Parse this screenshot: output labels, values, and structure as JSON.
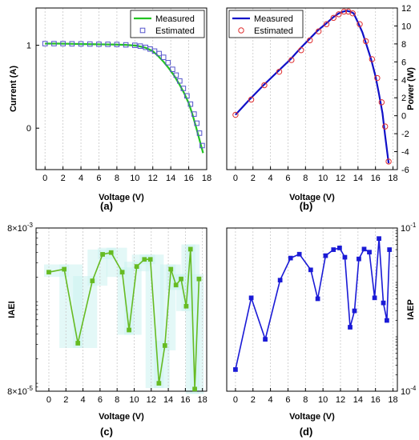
{
  "chart_data": [
    {
      "id": "a",
      "type": "line",
      "panel_label": "(a)",
      "xlabel": "Voltage (V)",
      "ylabel": "Current (A)",
      "xlim": [
        -1,
        18
      ],
      "ylim": [
        -0.5,
        1.45
      ],
      "xticks": [
        "0",
        "2",
        "4",
        "6",
        "8",
        "10",
        "12",
        "14",
        "16",
        "18"
      ],
      "yticks": [
        "0",
        "1"
      ],
      "grid": "vertical dashed",
      "legend": {
        "position": "top-right",
        "entries": [
          "Measured",
          "Estimated"
        ]
      },
      "series": [
        {
          "name": "Measured",
          "style": "line",
          "color": "#22c322",
          "x": [
            0,
            1.5,
            3,
            4.5,
            6,
            7.5,
            9,
            10.2,
            11.2,
            12,
            12.6,
            13.2,
            13.8,
            14.4,
            15,
            15.5,
            16,
            16.4,
            16.8,
            17.2,
            17.6
          ],
          "y": [
            1.02,
            1.02,
            1.018,
            1.015,
            1.012,
            1.01,
            1.005,
            0.995,
            0.97,
            0.93,
            0.87,
            0.8,
            0.72,
            0.63,
            0.52,
            0.42,
            0.3,
            0.17,
            0.02,
            -0.14,
            -0.3
          ]
        },
        {
          "name": "Estimated",
          "style": "square",
          "color": "#5555cc",
          "x": [
            0,
            1,
            2,
            3,
            4,
            5,
            6,
            7,
            8,
            9,
            10,
            10.6,
            11.2,
            11.7,
            12.2,
            12.7,
            13.2,
            13.7,
            14.2,
            14.6,
            15,
            15.4,
            15.8,
            16.2,
            16.6,
            16.9,
            17.2,
            17.5
          ],
          "y": [
            1.02,
            1.02,
            1.02,
            1.018,
            1.017,
            1.015,
            1.013,
            1.012,
            1.01,
            1.005,
            1,
            0.99,
            0.975,
            0.955,
            0.93,
            0.9,
            0.855,
            0.79,
            0.71,
            0.64,
            0.57,
            0.48,
            0.39,
            0.29,
            0.17,
            0.06,
            -0.06,
            -0.21
          ]
        }
      ]
    },
    {
      "id": "b",
      "type": "line",
      "panel_label": "(b)",
      "xlabel": "Voltage (V)",
      "ylabel": "Power (W)",
      "xlim": [
        -1,
        18.5
      ],
      "ylim": [
        -6,
        12
      ],
      "xticks": [
        "0",
        "2",
        "4",
        "6",
        "8",
        "10",
        "12",
        "14",
        "16",
        "18"
      ],
      "yticks": [
        "-6",
        "-4",
        "-2",
        "0",
        "2",
        "4",
        "6",
        "8",
        "10",
        "12"
      ],
      "y_axis_side": "right",
      "grid": "vertical dashed",
      "legend": {
        "position": "top-left",
        "entries": [
          "Measured",
          "Estimated"
        ]
      },
      "series": [
        {
          "name": "Measured",
          "style": "line",
          "color": "#1010c8",
          "x": [
            0,
            1.6,
            3.2,
            4.8,
            6.3,
            7.4,
            8.4,
            9.4,
            10.4,
            11.2,
            11.8,
            12.3,
            12.7,
            13.1,
            13.5,
            14,
            14.5,
            15,
            15.5,
            16,
            16.4,
            16.8,
            17.1,
            17.5
          ],
          "y": [
            0.1,
            1.8,
            3.4,
            4.9,
            6.3,
            7.5,
            8.5,
            9.5,
            10.3,
            11,
            11.4,
            11.6,
            11.7,
            11.6,
            11.4,
            10.4,
            9.3,
            7.8,
            6.3,
            4.4,
            2.4,
            0.3,
            -2.2,
            -5.3
          ]
        },
        {
          "name": "Estimated",
          "style": "circle",
          "color": "#e03030",
          "x": [
            0,
            1.8,
            3.3,
            5,
            6.4,
            7.5,
            8.5,
            9.5,
            10.4,
            11.2,
            11.8,
            12.4,
            12.9,
            13.4,
            14.2,
            14.9,
            15.6,
            16.2,
            16.7,
            17.1,
            17.5
          ],
          "y": [
            0.1,
            1.8,
            3.4,
            4.9,
            6.2,
            7.3,
            8.4,
            9.4,
            10.2,
            10.9,
            11.3,
            11.6,
            11.6,
            11.4,
            10.2,
            8.3,
            6.3,
            4.2,
            1.5,
            -1.2,
            -5.1
          ]
        }
      ]
    },
    {
      "id": "c",
      "type": "line",
      "panel_label": "(c)",
      "xlabel": "Voltage (V)",
      "ylabel": "IAEI",
      "xlim": [
        -1.5,
        18.5
      ],
      "y_scale": "log",
      "ylim": [
        8e-05,
        0.008
      ],
      "yticks_labels": [
        "8×10",
        "8×10"
      ],
      "yticks_exponents": [
        "-3",
        "-5"
      ],
      "xticks": [
        "0",
        "2",
        "4",
        "6",
        "8",
        "10",
        "12",
        "14",
        "16",
        "18"
      ],
      "grid": "vertical dashed",
      "band_color": "#ccf3f0",
      "series": [
        {
          "name": "",
          "style": "line+square",
          "color": "#66bb22",
          "x": [
            0,
            1.8,
            3.4,
            5.1,
            6.3,
            7.3,
            8.6,
            9.4,
            10.3,
            11.2,
            11.9,
            12.9,
            13.6,
            14.3,
            14.9,
            15.5,
            16.1,
            16.6,
            17.1,
            17.6
          ],
          "y": [
            0.0023,
            0.0025,
            0.00031,
            0.0018,
            0.0038,
            0.004,
            0.0023,
            0.00045,
            0.0027,
            0.0033,
            0.0033,
            0.0001,
            0.00029,
            0.0025,
            0.0016,
            0.0019,
            0.00088,
            0.0044,
            8.5e-05,
            0.0019
          ]
        }
      ]
    },
    {
      "id": "d",
      "type": "line",
      "panel_label": "(d)",
      "xlabel": "Voltage (V)",
      "ylabel": "IAEP",
      "xlim": [
        -1,
        18.5
      ],
      "y_scale": "log",
      "ylim": [
        0.0001,
        0.1
      ],
      "yticks_labels": [
        "10",
        "10"
      ],
      "yticks_exponents": [
        "-1",
        "-4"
      ],
      "xticks": [
        "0",
        "2",
        "4",
        "6",
        "8",
        "10",
        "12",
        "14",
        "16",
        "18"
      ],
      "grid": "vertical dashed",
      "series": [
        {
          "name": "",
          "style": "line+square",
          "color": "#1a1ad6",
          "x": [
            0,
            1.8,
            3.4,
            5.1,
            6.3,
            7.3,
            8.6,
            9.4,
            10.3,
            11.2,
            11.9,
            12.5,
            13.1,
            13.6,
            14.1,
            14.7,
            15.3,
            15.9,
            16.4,
            16.9,
            17.3,
            17.6
          ],
          "y": [
            0.00025,
            0.0052,
            0.0009,
            0.011,
            0.028,
            0.033,
            0.017,
            0.005,
            0.031,
            0.04,
            0.043,
            0.029,
            0.0015,
            0.003,
            0.027,
            0.041,
            0.036,
            0.0052,
            0.064,
            0.0042,
            0.002,
            0.04
          ]
        }
      ]
    }
  ]
}
